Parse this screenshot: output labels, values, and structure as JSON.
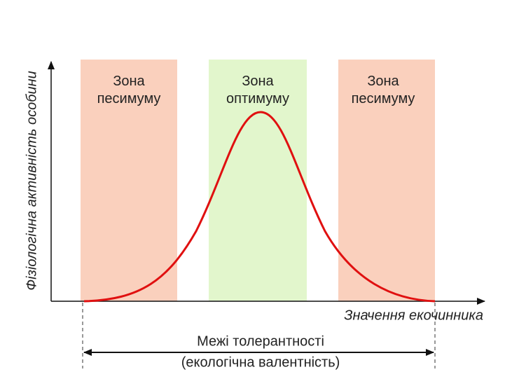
{
  "zones": [
    {
      "line1": "Зона",
      "line2": "песимуму"
    },
    {
      "line1": "Зона",
      "line2": "оптимуму"
    },
    {
      "line1": "Зона",
      "line2": "песимуму"
    }
  ],
  "axis": {
    "y_label": "Фізіологічна активність особини",
    "x_label": "Значення екочинника"
  },
  "tolerance": {
    "line1": "Межі толерантності",
    "line2": "(екологічна валентність)"
  }
}
